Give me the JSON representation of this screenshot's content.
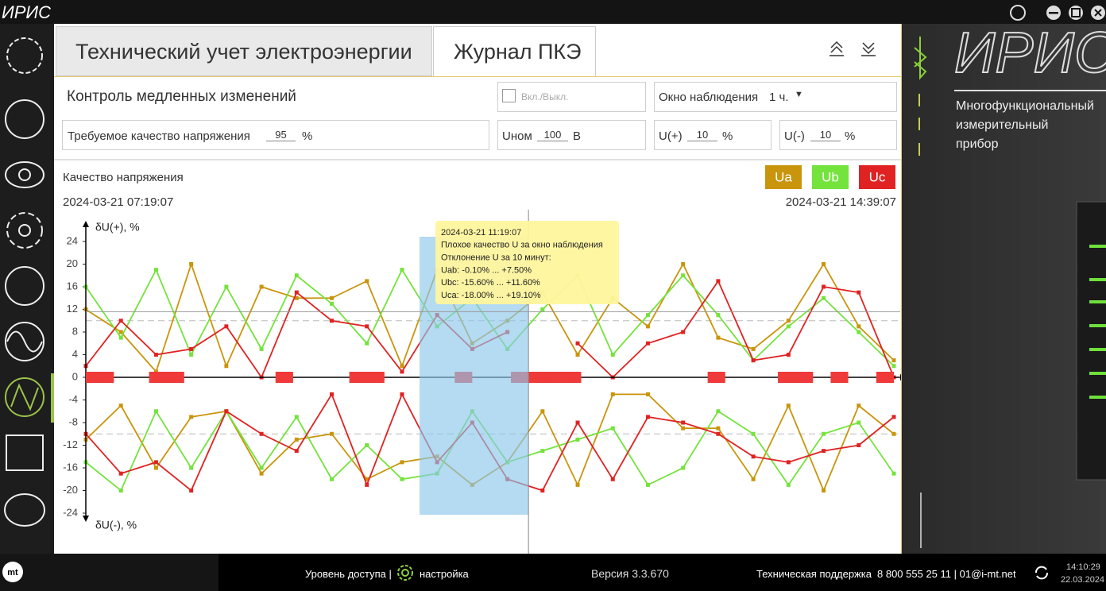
{
  "top_bar": {
    "logo": "ИРИС"
  },
  "tabs": [
    "Технический учет электроэнергии",
    "Журнал ПКЭ"
  ],
  "panel": {
    "title": "Контроль медленных изменений",
    "enable_label": "Вкл./Выкл.",
    "window_label": "Окно наблюдения",
    "window_value": "1 ч.",
    "quality_label": "Требуемое качество напряжения",
    "quality_value": "95",
    "quality_unit": "%",
    "unom_label": "Uном",
    "unom_value": "100",
    "unom_unit": "В",
    "u_plus_label": "U(+)",
    "u_plus_value": 10,
    "u_plus_unit": "%",
    "u_minus_label": "U(-)",
    "u_minus_value": 10,
    "u_minus_unit": "%"
  },
  "chart_data": {
    "type": "line",
    "title": "Качество напряжения",
    "start_time": "2024-03-21 07:19:07",
    "end_time": "2024-03-21 14:39:07",
    "y_label_top": "δU(+), %",
    "y_label_bottom": "δU(-), %",
    "ylim": [
      -24,
      24
    ],
    "yticks": [
      24,
      20,
      16,
      12,
      8,
      4,
      0,
      -4,
      -8,
      -12,
      -16,
      -20,
      -24
    ],
    "series": [
      {
        "name": "Ua",
        "color": "#c9950c",
        "values": [
          12,
          8,
          1,
          20,
          2,
          16,
          14,
          14,
          17,
          2,
          19,
          6,
          10,
          15,
          4,
          14,
          9,
          20,
          7,
          5,
          10,
          20,
          9,
          3
        ],
        "values_minus": [
          -11,
          -5,
          -16,
          -7,
          -6,
          -17,
          -11,
          -10,
          -18,
          -15,
          -14,
          -19,
          -15,
          -6,
          -19,
          -3,
          -3,
          -9,
          -9,
          -18,
          -5,
          -20,
          -5,
          -10
        ]
      },
      {
        "name": "Ub",
        "color": "#74e33c",
        "values": [
          16,
          7,
          19,
          4,
          16,
          5,
          18,
          13,
          6,
          19,
          9,
          14,
          5,
          12,
          18,
          4,
          11,
          18,
          11,
          3,
          9,
          14,
          8,
          2
        ],
        "values_minus": [
          -15,
          -20,
          -6,
          -16,
          -6,
          -16,
          -7,
          -18,
          -12,
          -18,
          -17,
          -6,
          -15,
          -13,
          -11,
          -9,
          -19,
          -16,
          -6,
          -10,
          -19,
          -10,
          -8,
          -17
        ]
      },
      {
        "name": "Uc",
        "color": "#e02222",
        "values": [
          2,
          10,
          4,
          5,
          9,
          0,
          15,
          10,
          9,
          1,
          11,
          5,
          8,
          null,
          6,
          0,
          6,
          8,
          17,
          3,
          4,
          16,
          15,
          0
        ],
        "values_minus": [
          -10,
          -17,
          -15,
          -20,
          -6,
          -10,
          -13,
          -3,
          -19,
          -3,
          -15,
          -8,
          -18,
          -20,
          -8,
          -18,
          -7,
          -8,
          -10,
          -14,
          -15,
          -13,
          -12,
          -7
        ]
      }
    ],
    "bad_intervals": [
      [
        0,
        0.8
      ],
      [
        1.8,
        2.8
      ],
      [
        5.4,
        5.9
      ],
      [
        7.5,
        8.5
      ],
      [
        10.5,
        11
      ],
      [
        12.1,
        12.6
      ],
      [
        12.6,
        14.1
      ],
      [
        17.7,
        18.2
      ],
      [
        19.7,
        20.7
      ],
      [
        21.2,
        21.7
      ],
      [
        22.5,
        23
      ]
    ],
    "bad_color": "#f03a3a",
    "highlight": [
      9.5,
      12.6
    ],
    "crosshair": {
      "x": 12.6,
      "y": 11.6
    },
    "tooltip": [
      "2024-03-21 11:19:07",
      "Плохое качество U за окно наблюдения",
      "Отклонение U за 10 минут:",
      "Uab: -0.10% ... +7.50%",
      "Ubc: -15.60% ... +11.60%",
      "Uca: -18.00% ... +19.10%"
    ]
  },
  "right_panel": {
    "logo": "ИРИС",
    "description": [
      "Многофункциональный",
      "измерительный",
      "прибор"
    ]
  },
  "status_bar": {
    "access": "Уровень доступа |",
    "access_level": "настройка",
    "version": "Версия 3.3.670",
    "support": "Техническая поддержка",
    "contacts": "8 800 555 25 11 | 01@i-mt.net",
    "time": "14:10:29",
    "date": "22.03.2024"
  }
}
